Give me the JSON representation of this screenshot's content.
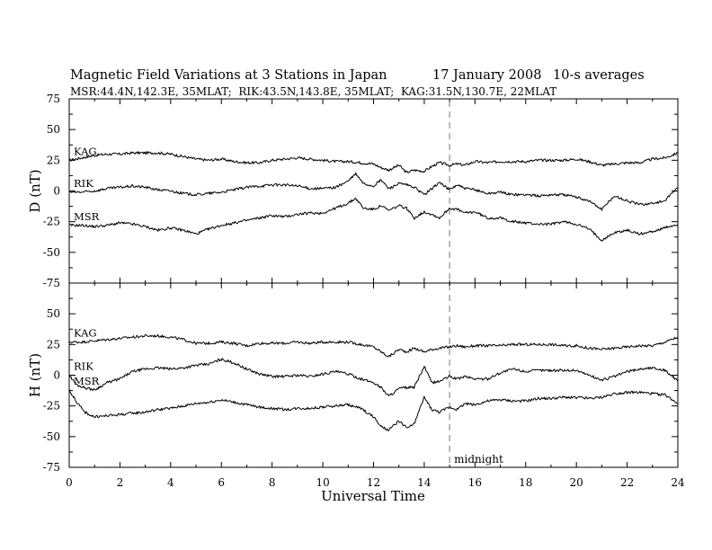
{
  "chart_data": {
    "type": "line",
    "title": "Magnetic Field Variations at 3 Stations in Japan",
    "date": "17 January 2008",
    "averaging": "10-s averages",
    "subtitle": "MSR:44.4N,142.3E, 35MLAT;  RIK:43.5N,143.8E, 35MLAT;  KAG:31.5N,130.7E, 22MLAT",
    "xlabel": "Universal Time",
    "xlim": [
      0,
      24
    ],
    "xticks": [
      0,
      2,
      4,
      6,
      8,
      10,
      12,
      14,
      16,
      18,
      20,
      22,
      24
    ],
    "grid": false,
    "annotation": {
      "text": "midnight",
      "x": 15
    },
    "panels": [
      {
        "ylabel": "D (nT)",
        "ylim": [
          -75,
          75
        ],
        "yticks": [
          -75,
          -50,
          -25,
          0,
          25,
          50,
          75
        ],
        "series": [
          {
            "name": "KAG",
            "x": [
              0,
              0.5,
              1,
              1.5,
              2,
              2.5,
              3,
              3.5,
              4,
              4.5,
              5,
              5.5,
              6,
              6.5,
              7,
              7.5,
              8,
              8.5,
              9,
              9.5,
              10,
              10.5,
              11,
              11.5,
              12,
              12.3,
              12.6,
              13,
              13.3,
              13.6,
              14,
              14.3,
              14.6,
              15,
              15.3,
              15.6,
              16,
              16.5,
              17,
              17.5,
              18,
              18.5,
              19,
              19.5,
              20,
              20.5,
              21,
              21.5,
              22,
              22.5,
              23,
              23.5,
              24
            ],
            "values": [
              25,
              27,
              29,
              30,
              30,
              31,
              31,
              31,
              30,
              28,
              26,
              25,
              26,
              24,
              23,
              23,
              25,
              26,
              27,
              26,
              25,
              24,
              24,
              23,
              22,
              19,
              17,
              21,
              15,
              17,
              16,
              20,
              23,
              21,
              22,
              21,
              24,
              23,
              24,
              24,
              24,
              25,
              25,
              25,
              26,
              24,
              21,
              22,
              23,
              23,
              26,
              27,
              31
            ]
          },
          {
            "name": "RIK",
            "x": [
              0,
              0.5,
              1,
              1.5,
              2,
              2.5,
              3,
              3.5,
              4,
              4.5,
              5,
              5.5,
              6,
              6.5,
              7,
              7.5,
              8,
              8.5,
              9,
              9.5,
              10,
              10.5,
              11,
              11.3,
              11.6,
              12,
              12.3,
              12.6,
              13,
              13.3,
              13.6,
              14,
              14.3,
              14.6,
              15,
              15.3,
              15.6,
              16,
              16.5,
              17,
              17.5,
              18,
              18.5,
              19,
              19.5,
              20,
              20.5,
              21,
              21.5,
              22,
              22.5,
              23,
              23.5,
              24
            ],
            "values": [
              -1,
              -1,
              0,
              2,
              3,
              4,
              3,
              1,
              0,
              -2,
              -3,
              -2,
              -1,
              1,
              3,
              4,
              5,
              5,
              4,
              2,
              2,
              3,
              8,
              14,
              6,
              4,
              9,
              2,
              6,
              5,
              3,
              -3,
              2,
              7,
              1,
              5,
              2,
              1,
              -2,
              -1,
              -3,
              -3,
              -4,
              -3,
              -3,
              -5,
              -8,
              -15,
              -4,
              -8,
              -11,
              -10,
              -8,
              3
            ]
          },
          {
            "name": "MSR",
            "x": [
              0,
              0.5,
              1,
              1.5,
              2,
              2.5,
              3,
              3.5,
              4,
              4.5,
              5,
              5.5,
              6,
              6.5,
              7,
              7.5,
              8,
              8.5,
              9,
              9.5,
              10,
              10.5,
              11,
              11.3,
              11.6,
              12,
              12.3,
              12.6,
              13,
              13.3,
              13.6,
              14,
              14.3,
              14.6,
              15,
              15.3,
              15.6,
              16,
              16.5,
              17,
              17.5,
              18,
              18.5,
              19,
              19.5,
              20,
              20.5,
              21,
              21.5,
              22,
              22.5,
              23,
              23.5,
              24
            ],
            "values": [
              -28,
              -28,
              -29,
              -28,
              -26,
              -27,
              -29,
              -32,
              -30,
              -32,
              -35,
              -31,
              -28,
              -26,
              -24,
              -22,
              -20,
              -21,
              -19,
              -18,
              -18,
              -14,
              -10,
              -6,
              -14,
              -15,
              -12,
              -16,
              -12,
              -14,
              -22,
              -17,
              -19,
              -22,
              -14,
              -15,
              -18,
              -17,
              -22,
              -22,
              -25,
              -26,
              -27,
              -27,
              -25,
              -27,
              -31,
              -40,
              -34,
              -32,
              -35,
              -33,
              -30,
              -27
            ]
          }
        ]
      },
      {
        "ylabel": "H (nT)",
        "ylim": [
          -75,
          75
        ],
        "yticks": [
          -75,
          -50,
          -25,
          0,
          25,
          50,
          75
        ],
        "series": [
          {
            "name": "KAG",
            "x": [
              0,
              0.5,
              1,
              1.5,
              2,
              2.5,
              3,
              3.5,
              4,
              4.5,
              5,
              5.5,
              6,
              6.5,
              7,
              7.5,
              8,
              8.5,
              9,
              9.5,
              10,
              10.5,
              11,
              11.5,
              12,
              12.3,
              12.6,
              13,
              13.3,
              13.6,
              14,
              14.3,
              14.6,
              15,
              15.3,
              15.6,
              16,
              16.5,
              17,
              17.5,
              18,
              18.5,
              19,
              19.5,
              20,
              20.5,
              21,
              21.5,
              22,
              22.5,
              23,
              23.5,
              24
            ],
            "values": [
              27,
              27,
              28,
              29,
              30,
              31,
              32,
              32,
              31,
              29,
              26,
              26,
              27,
              26,
              24,
              26,
              26,
              26,
              27,
              26,
              27,
              27,
              27,
              25,
              23,
              19,
              15,
              21,
              19,
              22,
              19,
              21,
              22,
              23,
              24,
              23,
              24,
              24,
              24,
              25,
              25,
              25,
              25,
              24,
              24,
              22,
              21,
              22,
              23,
              24,
              24,
              27,
              31
            ]
          },
          {
            "name": "RIK",
            "x": [
              0,
              0.3,
              0.6,
              1,
              1.5,
              2,
              2.5,
              3,
              3.5,
              4,
              4.5,
              5,
              5.5,
              6,
              6.5,
              7,
              7.5,
              8,
              8.5,
              9,
              9.5,
              10,
              10.5,
              11,
              11.5,
              12,
              12.3,
              12.6,
              13,
              13.3,
              13.6,
              14,
              14.3,
              14.6,
              15,
              15.3,
              15.6,
              16,
              16.5,
              17,
              17.5,
              18,
              18.5,
              19,
              19.5,
              20,
              20.5,
              21,
              21.5,
              22,
              22.5,
              23,
              23.5,
              24
            ],
            "values": [
              0,
              -8,
              -10,
              -12,
              -6,
              -3,
              3,
              5,
              6,
              5,
              6,
              8,
              9,
              13,
              10,
              5,
              1,
              -1,
              -1,
              0,
              -1,
              1,
              3,
              1,
              -3,
              -6,
              -10,
              -17,
              -11,
              -10,
              -10,
              7,
              -6,
              -5,
              -1,
              -3,
              -1,
              -3,
              -3,
              2,
              5,
              3,
              4,
              4,
              4,
              4,
              0,
              -4,
              -1,
              3,
              5,
              6,
              4,
              -5
            ]
          },
          {
            "name": "MSR",
            "x": [
              0,
              0.3,
              0.6,
              1,
              1.5,
              2,
              2.5,
              3,
              3.5,
              4,
              4.5,
              5,
              5.5,
              6,
              6.5,
              7,
              7.5,
              8,
              8.5,
              9,
              9.5,
              10,
              10.5,
              11,
              11.5,
              12,
              12.3,
              12.6,
              13,
              13.3,
              13.6,
              14,
              14.3,
              14.6,
              15,
              15.3,
              15.6,
              16,
              16.5,
              17,
              17.5,
              18,
              18.5,
              19,
              19.5,
              20,
              20.5,
              21,
              21.5,
              22,
              22.5,
              23,
              23.5,
              24
            ],
            "values": [
              -12,
              -22,
              -30,
              -34,
              -33,
              -32,
              -31,
              -30,
              -28,
              -27,
              -25,
              -23,
              -22,
              -20,
              -22,
              -24,
              -26,
              -27,
              -28,
              -27,
              -27,
              -26,
              -25,
              -24,
              -27,
              -34,
              -42,
              -45,
              -37,
              -43,
              -40,
              -18,
              -28,
              -30,
              -26,
              -28,
              -23,
              -24,
              -21,
              -20,
              -21,
              -21,
              -19,
              -19,
              -18,
              -18,
              -19,
              -18,
              -15,
              -14,
              -14,
              -15,
              -16,
              -23
            ]
          }
        ]
      }
    ]
  }
}
